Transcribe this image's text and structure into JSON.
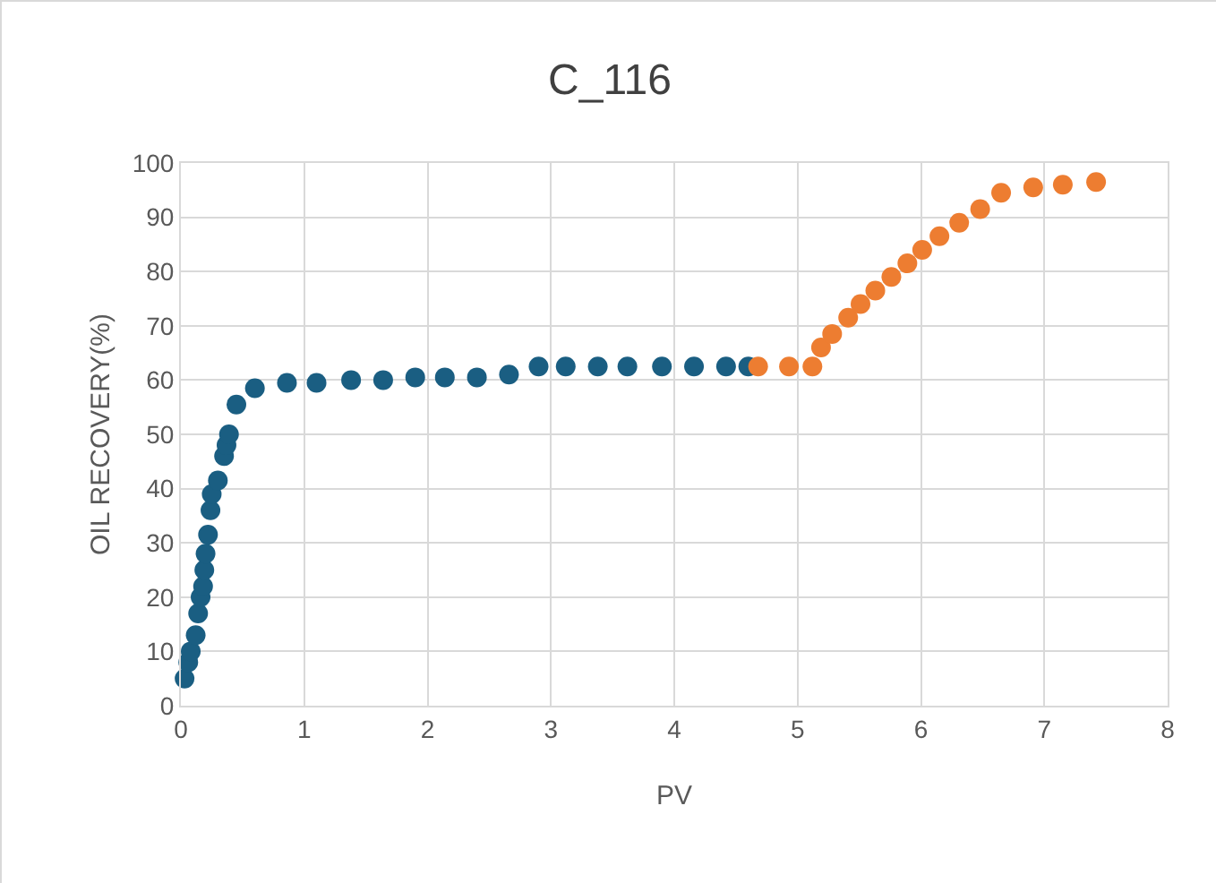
{
  "chart_data": {
    "type": "scatter",
    "title": "C_116",
    "xlabel": "PV",
    "ylabel": "OIL RECOVERY(%)",
    "xlim": [
      0,
      8
    ],
    "xticks": [
      0,
      1,
      2,
      3,
      4,
      5,
      6,
      7,
      8
    ],
    "ylim": [
      0,
      100
    ],
    "yticks": [
      0,
      10,
      20,
      30,
      40,
      50,
      60,
      70,
      80,
      90,
      100
    ],
    "grid": true,
    "marker": "circle",
    "series": [
      {
        "color": "#1a5e82",
        "x": [
          0.03,
          0.06,
          0.08,
          0.12,
          0.14,
          0.16,
          0.18,
          0.19,
          0.2,
          0.22,
          0.24,
          0.25,
          0.3,
          0.35,
          0.37,
          0.39,
          0.45,
          0.6,
          0.86,
          1.1,
          1.38,
          1.64,
          1.9,
          2.14,
          2.4,
          2.66,
          2.9,
          3.12,
          3.38,
          3.62,
          3.9,
          4.16,
          4.42,
          4.6
        ],
        "values": [
          5,
          8,
          10,
          13,
          17,
          20,
          22,
          25,
          28,
          31.5,
          36,
          39,
          41.5,
          46,
          48,
          50,
          55.5,
          58.5,
          59.5,
          59.5,
          60,
          60,
          60.5,
          60.5,
          60.5,
          61,
          62.5,
          62.5,
          62.5,
          62.5,
          62.5,
          62.5,
          62.5,
          62.5
        ]
      },
      {
        "color": "#ed7d31",
        "x": [
          4.68,
          4.93,
          5.12,
          5.19,
          5.28,
          5.41,
          5.51,
          5.63,
          5.76,
          5.89,
          6.01,
          6.15,
          6.31,
          6.48,
          6.65,
          6.91,
          7.15,
          7.42
        ],
        "values": [
          62.5,
          62.5,
          62.5,
          66,
          68.5,
          71.5,
          74,
          76.5,
          79,
          81.5,
          84,
          86.5,
          89,
          91.5,
          94.5,
          95.5,
          96,
          96.5
        ]
      }
    ]
  }
}
